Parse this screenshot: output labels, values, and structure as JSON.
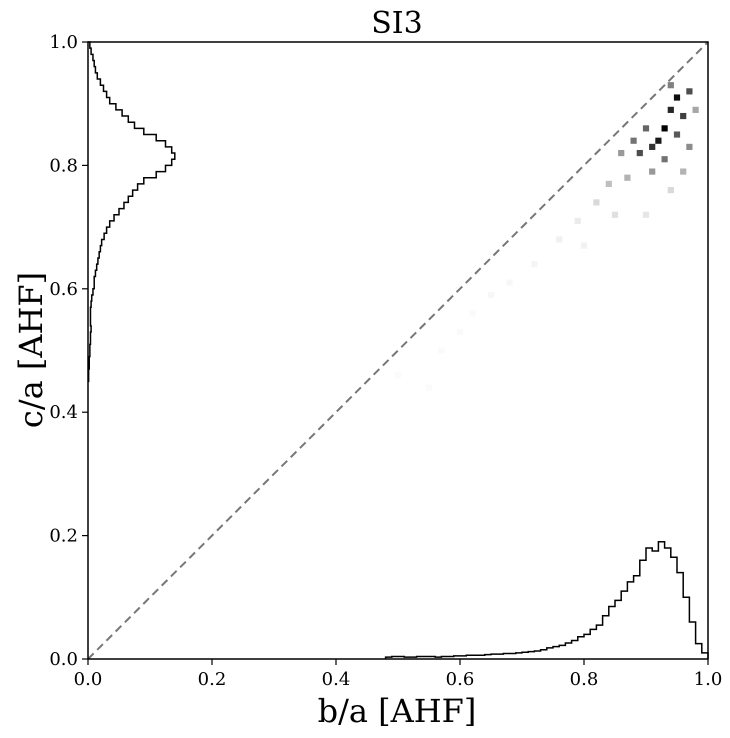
{
  "chart_data": {
    "type": "heatmap",
    "title": "SI3",
    "xlabel": "b/a [AHF]",
    "ylabel": "c/a [AHF]",
    "xlim": [
      0,
      1
    ],
    "ylim": [
      0,
      1
    ],
    "xticks": [
      "0.0",
      "0.2",
      "0.4",
      "0.6",
      "0.8",
      "1.0"
    ],
    "yticks": [
      "0.0",
      "0.2",
      "0.4",
      "0.6",
      "0.8",
      "1.0"
    ],
    "grid": false,
    "reference_line": {
      "style": "dashed",
      "color": "#777777",
      "from": [
        0,
        0
      ],
      "to": [
        1,
        1
      ]
    },
    "colormap": "Greys",
    "density_peak": {
      "b_over_a": 0.94,
      "c_over_a": 0.86
    },
    "density_bins": [
      {
        "x": 0.95,
        "y": 0.91,
        "v": 0.95
      },
      {
        "x": 0.94,
        "y": 0.89,
        "v": 0.85
      },
      {
        "x": 0.93,
        "y": 0.86,
        "v": 1.0
      },
      {
        "x": 0.92,
        "y": 0.84,
        "v": 0.9
      },
      {
        "x": 0.91,
        "y": 0.83,
        "v": 0.8
      },
      {
        "x": 0.89,
        "y": 0.82,
        "v": 0.7
      },
      {
        "x": 0.96,
        "y": 0.88,
        "v": 0.75
      },
      {
        "x": 0.97,
        "y": 0.92,
        "v": 0.7
      },
      {
        "x": 0.95,
        "y": 0.85,
        "v": 0.65
      },
      {
        "x": 0.9,
        "y": 0.86,
        "v": 0.6
      },
      {
        "x": 0.88,
        "y": 0.84,
        "v": 0.55
      },
      {
        "x": 0.93,
        "y": 0.81,
        "v": 0.55
      },
      {
        "x": 0.97,
        "y": 0.83,
        "v": 0.45
      },
      {
        "x": 0.94,
        "y": 0.93,
        "v": 0.5
      },
      {
        "x": 0.86,
        "y": 0.82,
        "v": 0.4
      },
      {
        "x": 0.91,
        "y": 0.79,
        "v": 0.4
      },
      {
        "x": 0.87,
        "y": 0.78,
        "v": 0.3
      },
      {
        "x": 0.84,
        "y": 0.77,
        "v": 0.25
      },
      {
        "x": 0.96,
        "y": 0.79,
        "v": 0.3
      },
      {
        "x": 0.98,
        "y": 0.89,
        "v": 0.35
      },
      {
        "x": 0.82,
        "y": 0.74,
        "v": 0.15
      },
      {
        "x": 0.85,
        "y": 0.72,
        "v": 0.12
      },
      {
        "x": 0.9,
        "y": 0.72,
        "v": 0.1
      },
      {
        "x": 0.94,
        "y": 0.76,
        "v": 0.15
      },
      {
        "x": 0.79,
        "y": 0.71,
        "v": 0.08
      },
      {
        "x": 0.76,
        "y": 0.68,
        "v": 0.06
      },
      {
        "x": 0.8,
        "y": 0.67,
        "v": 0.05
      },
      {
        "x": 0.72,
        "y": 0.64,
        "v": 0.04
      },
      {
        "x": 0.68,
        "y": 0.61,
        "v": 0.03
      },
      {
        "x": 0.65,
        "y": 0.59,
        "v": 0.03
      },
      {
        "x": 0.62,
        "y": 0.56,
        "v": 0.02
      },
      {
        "x": 0.6,
        "y": 0.53,
        "v": 0.02
      },
      {
        "x": 0.57,
        "y": 0.5,
        "v": 0.02
      },
      {
        "x": 0.5,
        "y": 0.46,
        "v": 0.015
      },
      {
        "x": 0.55,
        "y": 0.44,
        "v": 0.015
      }
    ],
    "hist_x": {
      "edges_start": 0.48,
      "bin_width": 0.01,
      "counts": [
        0.003,
        0.004,
        0.004,
        0.003,
        0.003,
        0.004,
        0.004,
        0.004,
        0.003,
        0.004,
        0.004,
        0.005,
        0.005,
        0.006,
        0.006,
        0.006,
        0.007,
        0.008,
        0.008,
        0.009,
        0.009,
        0.01,
        0.011,
        0.012,
        0.013,
        0.015,
        0.018,
        0.02,
        0.022,
        0.026,
        0.03,
        0.036,
        0.04,
        0.048,
        0.055,
        0.07,
        0.085,
        0.095,
        0.11,
        0.125,
        0.135,
        0.16,
        0.18,
        0.175,
        0.19,
        0.18,
        0.165,
        0.14,
        0.1,
        0.06,
        0.025,
        0.01
      ]
    },
    "hist_y": {
      "edges_start": 0.45,
      "bin_width": 0.01,
      "counts": [
        0.001,
        0.001,
        0.002,
        0.002,
        0.003,
        0.003,
        0.004,
        0.004,
        0.005,
        0.004,
        0.004,
        0.004,
        0.005,
        0.006,
        0.008,
        0.01,
        0.01,
        0.012,
        0.014,
        0.016,
        0.018,
        0.02,
        0.022,
        0.026,
        0.03,
        0.035,
        0.042,
        0.05,
        0.058,
        0.065,
        0.072,
        0.08,
        0.09,
        0.11,
        0.125,
        0.135,
        0.14,
        0.135,
        0.125,
        0.11,
        0.09,
        0.075,
        0.065,
        0.055,
        0.045,
        0.035,
        0.03,
        0.025,
        0.02,
        0.015,
        0.012,
        0.01,
        0.008,
        0.005,
        0.003
      ]
    }
  }
}
